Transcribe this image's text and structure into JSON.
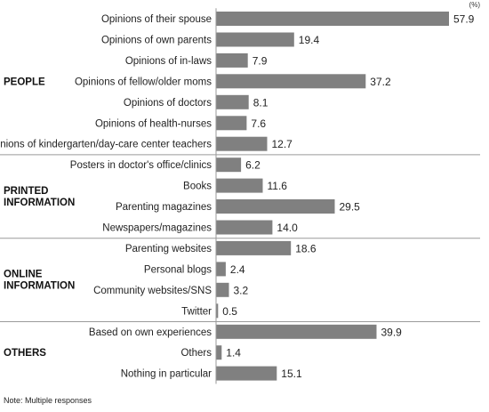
{
  "chart_data": {
    "type": "bar",
    "orientation": "horizontal",
    "unit": "(%)",
    "note": "Note: Multiple responses",
    "xlim": [
      0,
      60
    ],
    "grid": false,
    "legend": "none",
    "bar_color": "#808080",
    "groups": [
      {
        "label_lines": [
          "PEOPLE"
        ],
        "items": [
          {
            "label": "Opinions of their spouse",
            "value": 57.9
          },
          {
            "label": "Opinions of own parents",
            "value": 19.4
          },
          {
            "label": "Opinions of in-laws",
            "value": 7.9
          },
          {
            "label": "Opinions of fellow/older moms",
            "value": 37.2
          },
          {
            "label": "Opinions of doctors",
            "value": 8.1
          },
          {
            "label": "Opinions of health-nurses",
            "value": 7.6
          },
          {
            "label": "Opinions of kindergarten/day-care center teachers",
            "value": 12.7
          }
        ]
      },
      {
        "label_lines": [
          "PRINTED",
          "INFORMATION"
        ],
        "items": [
          {
            "label": "Posters in doctor's office/clinics",
            "value": 6.2
          },
          {
            "label": "Books",
            "value": 11.6
          },
          {
            "label": "Parenting magazines",
            "value": 29.5
          },
          {
            "label": "Newspapers/magazines",
            "value": 14.0
          }
        ]
      },
      {
        "label_lines": [
          "ONLINE",
          "INFORMATION"
        ],
        "items": [
          {
            "label": "Parenting websites",
            "value": 18.6
          },
          {
            "label": "Personal blogs",
            "value": 2.4
          },
          {
            "label": "Community websites/SNS",
            "value": 3.2
          },
          {
            "label": "Twitter",
            "value": 0.5
          }
        ]
      },
      {
        "label_lines": [
          "OTHERS"
        ],
        "items": [
          {
            "label": "Based on own experiences",
            "value": 39.9
          },
          {
            "label": "Others",
            "value": 1.4
          },
          {
            "label": "Nothing in particular",
            "value": 15.1
          }
        ]
      }
    ]
  }
}
